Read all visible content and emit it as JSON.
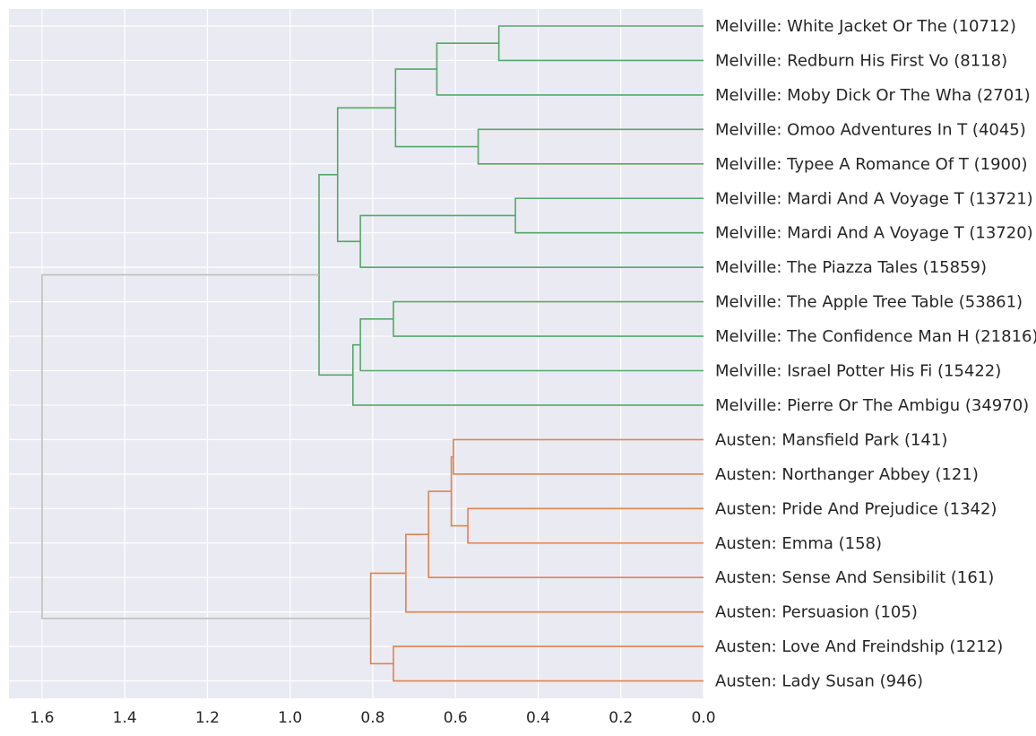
{
  "chart_data": {
    "type": "dendrogram",
    "orientation": "left",
    "x_ticks": [
      "1.6",
      "1.4",
      "1.2",
      "1.0",
      "0.8",
      "0.6",
      "0.4",
      "0.2",
      "0.0"
    ],
    "xlim": [
      1.68,
      0.0
    ],
    "grid": true,
    "colors": {
      "melville": "#55a868",
      "austen": "#dd8452",
      "root": "#bfbfbf",
      "background": "#eaeaf2",
      "grid": "#ffffff"
    },
    "leaves": [
      "Melville: White Jacket Or The  (10712)",
      "Melville: Redburn His First Vo (8118)",
      "Melville: Moby Dick Or The Wha (2701)",
      "Melville: Omoo Adventures In T (4045)",
      "Melville: Typee A Romance Of T (1900)",
      "Melville: Mardi And A Voyage T (13721)",
      "Melville: Mardi And A Voyage T (13720)",
      "Melville: The Piazza Tales (15859)",
      "Melville: The Apple Tree Table (53861)",
      "Melville: The Confidence Man H (21816)",
      "Melville: Israel Potter His Fi (15422)",
      "Melville: Pierre Or The Ambigu (34970)",
      "Austen: Mansfield Park (141)",
      "Austen: Northanger Abbey (121)",
      "Austen: Pride And Prejudice (1342)",
      "Austen: Emma (158)",
      "Austen: Sense And Sensibilit (161)",
      "Austen: Persuasion (105)",
      "Austen: Love And Freindship  (1212)",
      "Austen: Lady Susan (946)"
    ],
    "merges": [
      {
        "id": "m1",
        "a": 0,
        "b": 1,
        "height": 0.495,
        "color": "melville"
      },
      {
        "id": "m2",
        "a": "m1",
        "b": 2,
        "height": 0.645,
        "color": "melville"
      },
      {
        "id": "m3",
        "a": 3,
        "b": 4,
        "height": 0.545,
        "color": "melville"
      },
      {
        "id": "m4",
        "a": "m2",
        "b": "m3",
        "height": 0.745,
        "color": "melville"
      },
      {
        "id": "m5",
        "a": 5,
        "b": 6,
        "height": 0.455,
        "color": "melville"
      },
      {
        "id": "m6",
        "a": "m5",
        "b": 7,
        "height": 0.83,
        "color": "melville"
      },
      {
        "id": "m7",
        "a": "m4",
        "b": "m6",
        "height": 0.885,
        "color": "melville"
      },
      {
        "id": "m8",
        "a": 8,
        "b": 9,
        "height": 0.75,
        "color": "melville"
      },
      {
        "id": "m9",
        "a": "m8",
        "b": 10,
        "height": 0.83,
        "color": "melville"
      },
      {
        "id": "m10",
        "a": "m9",
        "b": 11,
        "height": 0.848,
        "color": "melville"
      },
      {
        "id": "m11",
        "a": "m7",
        "b": "m10",
        "height": 0.93,
        "color": "melville"
      },
      {
        "id": "m12",
        "a": 12,
        "b": 13,
        "height": 0.605,
        "color": "austen"
      },
      {
        "id": "m13",
        "a": 14,
        "b": 15,
        "height": 0.57,
        "color": "austen"
      },
      {
        "id": "m14",
        "a": "m12",
        "b": "m13",
        "height": 0.61,
        "color": "austen"
      },
      {
        "id": "m15",
        "a": "m14",
        "b": 16,
        "height": 0.665,
        "color": "austen"
      },
      {
        "id": "m16",
        "a": "m15",
        "b": 17,
        "height": 0.72,
        "color": "austen"
      },
      {
        "id": "m17",
        "a": 18,
        "b": 19,
        "height": 0.75,
        "color": "austen"
      },
      {
        "id": "m18",
        "a": "m16",
        "b": "m17",
        "height": 0.805,
        "color": "austen"
      },
      {
        "id": "m19",
        "a": "m11",
        "b": "m18",
        "height": 1.6,
        "color": "root"
      }
    ]
  }
}
